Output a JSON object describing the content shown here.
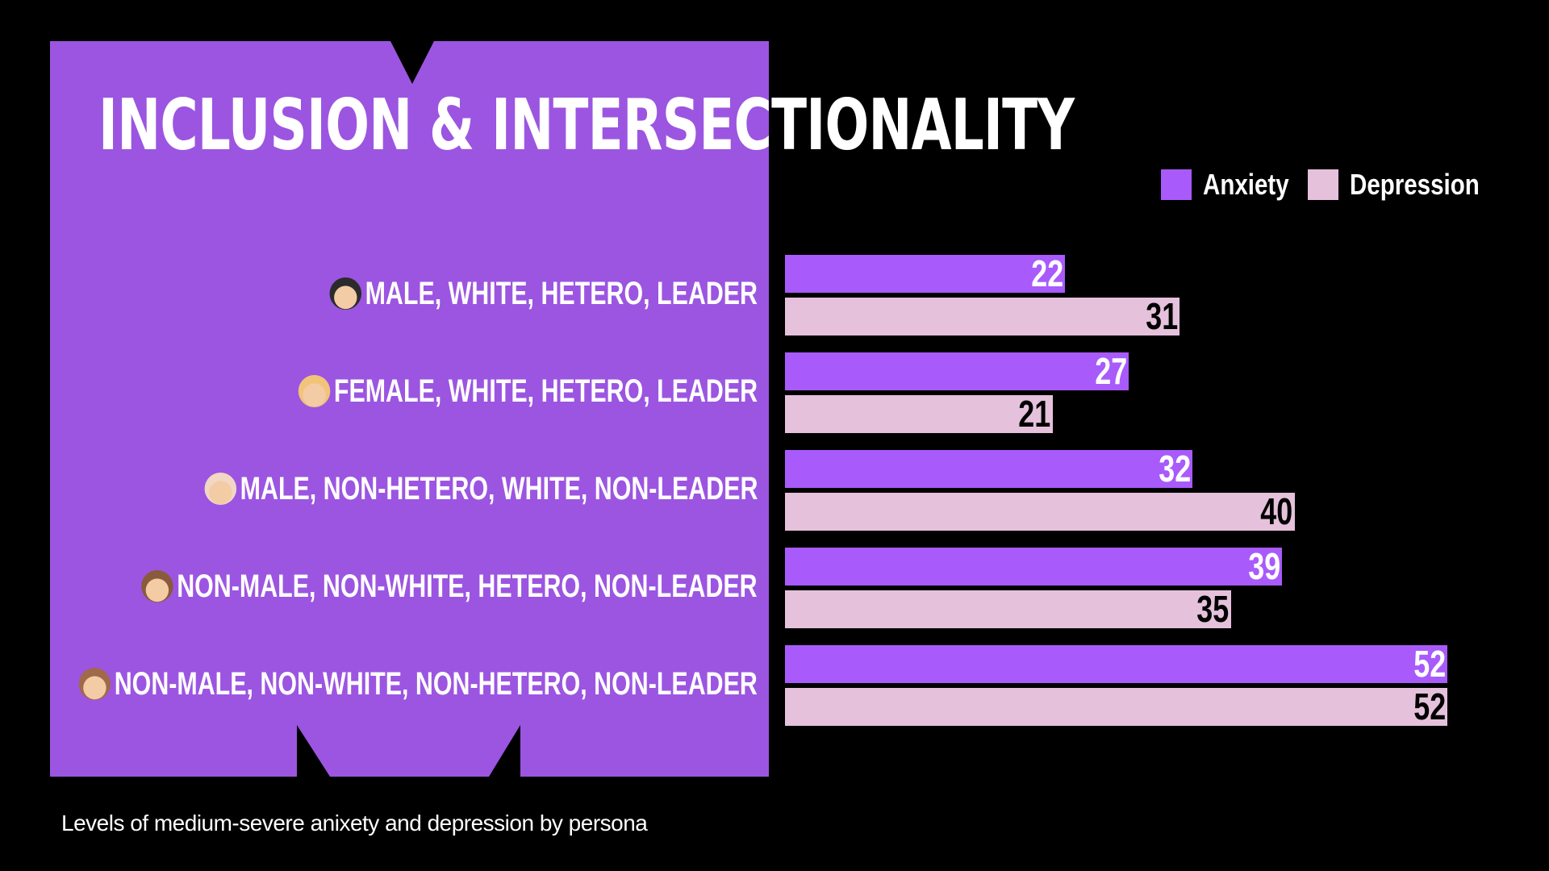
{
  "title": "INCLUSION & INTERSECTIONALITY",
  "caption": "Levels of medium-severe anixety and depression by persona",
  "colors": {
    "background": "#000000",
    "panel": "#9B55E0",
    "anxiety": "#A95AFA",
    "depression": "#E6C1DB",
    "anxiety_label": "#FFFFFF",
    "depression_label": "#000000"
  },
  "chart_data": {
    "type": "bar",
    "orientation": "horizontal",
    "title": "INCLUSION & INTERSECTIONALITY",
    "legend_position": "top-right",
    "grid": false,
    "categories": [
      "MALE, WHITE, HETERO, LEADER",
      "FEMALE, WHITE, HETERO, LEADER",
      "MALE, NON-HETERO, WHITE, NON-LEADER",
      "NON-MALE, NON-WHITE, HETERO, NON-LEADER",
      "NON-MALE, NON-WHITE, NON-HETERO, NON-LEADER"
    ],
    "category_icons": [
      "man-beard-emoji",
      "woman-blonde-emoji",
      "man-emoji",
      "woman-curly-emoji",
      "woman-emoji"
    ],
    "series": [
      {
        "name": "Anxiety",
        "values": [
          22,
          27,
          32,
          39,
          52
        ]
      },
      {
        "name": "Depression",
        "values": [
          31,
          21,
          40,
          35,
          52
        ]
      }
    ],
    "xlim": [
      0,
      52
    ]
  }
}
